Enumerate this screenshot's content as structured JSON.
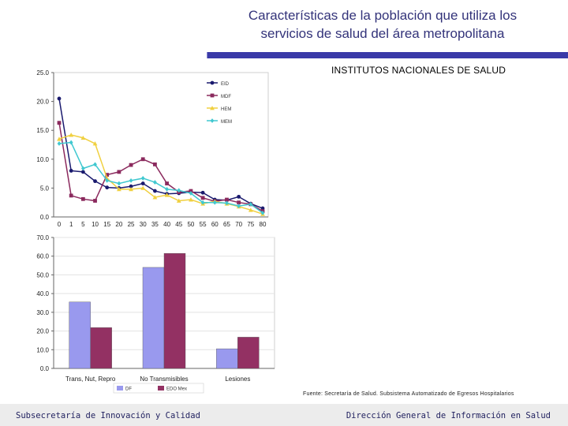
{
  "header": {
    "title_line1": "Características de la población que utiliza los",
    "title_line2": "servicios de salud del área metropolitana",
    "subtitle": "INSTITUTOS NACIONALES DE SALUD"
  },
  "source_note": "Fuente: Secretaría de Salud. Subsistema Automatizado de Egresos Hospitalarios",
  "footer": {
    "left": "Subsecretaría de Innovación y Calidad",
    "right": "Dirección General de Información en Salud"
  },
  "colors": {
    "title": "#33337a",
    "accent_bar": "#3a3aa8",
    "series_navy": "#1a1a6e",
    "series_maroon": "#8b2a5e",
    "series_yellow": "#f0d040",
    "series_cyan": "#40c8d0",
    "bar_blue": "#9999ee",
    "bar_maroon": "#933163"
  },
  "chart_data": [
    {
      "type": "line",
      "x": [
        "0",
        "1",
        "5",
        "10",
        "15",
        "20",
        "25",
        "30",
        "35",
        "40",
        "45",
        "50",
        "55",
        "60",
        "65",
        "70",
        "75",
        "80"
      ],
      "yticks": [
        "0.0",
        "5.0",
        "10.0",
        "15.0",
        "20.0",
        "25.0"
      ],
      "ylim": [
        0,
        25
      ],
      "legend_position": "top-right",
      "series": [
        {
          "name": "EID",
          "color": "#1a1a6e",
          "marker": "circle",
          "values": [
            20.5,
            8.0,
            7.8,
            6.2,
            5.1,
            5.0,
            5.3,
            5.8,
            4.5,
            4.0,
            4.1,
            4.3,
            4.2,
            3.0,
            2.9,
            3.5,
            2.3,
            1.5
          ]
        },
        {
          "name": "MDF",
          "color": "#8b2a5e",
          "marker": "square",
          "values": [
            16.3,
            3.7,
            3.1,
            2.8,
            7.3,
            7.8,
            9.0,
            10.0,
            9.1,
            5.8,
            4.3,
            4.5,
            3.3,
            2.7,
            3.0,
            2.5,
            2.2,
            1.0
          ]
        },
        {
          "name": "HEM",
          "color": "#f0d040",
          "marker": "triangle",
          "values": [
            13.5,
            14.2,
            13.7,
            12.7,
            6.7,
            4.8,
            4.8,
            5.0,
            3.4,
            3.8,
            2.8,
            3.0,
            2.3,
            2.7,
            2.3,
            1.8,
            1.2,
            0.5
          ]
        },
        {
          "name": "MEM",
          "color": "#40c8d0",
          "marker": "diamond",
          "values": [
            12.7,
            12.9,
            8.4,
            9.1,
            6.3,
            5.8,
            6.3,
            6.7,
            6.0,
            4.8,
            4.6,
            4.1,
            2.5,
            2.5,
            2.4,
            1.9,
            2.2,
            0.7
          ]
        }
      ]
    },
    {
      "type": "bar",
      "categories": [
        "Trans, Nut, Repro",
        "No Transmisibles",
        "Lesiones"
      ],
      "yticks": [
        "0.0",
        "10.0",
        "20.0",
        "30.0",
        "40.0",
        "50.0",
        "60.0",
        "70.0"
      ],
      "ylim": [
        0,
        70
      ],
      "legend_position": "bottom",
      "series": [
        {
          "name": "DF",
          "color": "#9999ee",
          "values": [
            35.5,
            54.0,
            10.5
          ]
        },
        {
          "name": "EDO Mex",
          "color": "#933163",
          "values": [
            21.8,
            61.5,
            16.7
          ]
        }
      ]
    }
  ]
}
